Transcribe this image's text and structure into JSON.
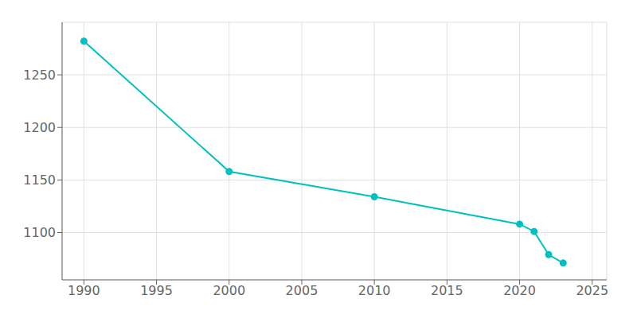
{
  "chart_data": {
    "type": "line",
    "x": [
      1990,
      2000,
      2010,
      2020,
      2021,
      2022,
      2023
    ],
    "values": [
      1282,
      1158,
      1134,
      1108,
      1101,
      1079,
      1071
    ],
    "color": "#00C0C0",
    "marker": "circle",
    "xlim": [
      1988.5,
      2026
    ],
    "ylim": [
      1055,
      1300
    ],
    "xticks": [
      1990,
      1995,
      2000,
      2005,
      2010,
      2015,
      2020,
      2025
    ],
    "yticks": [
      1100,
      1150,
      1200,
      1250
    ],
    "grid": true
  }
}
